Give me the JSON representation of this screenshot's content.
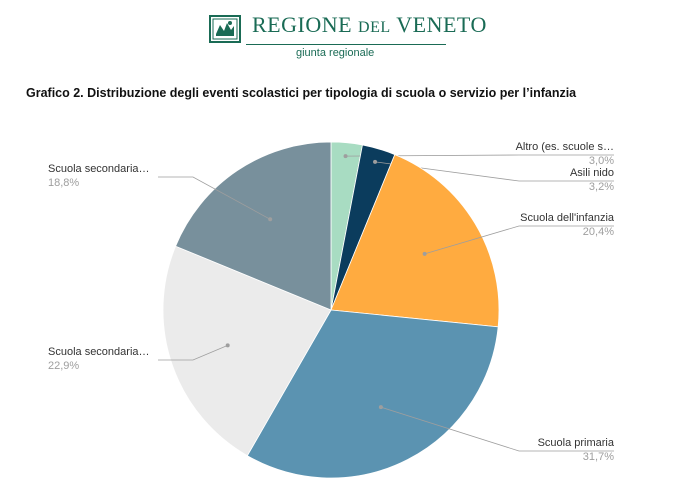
{
  "header": {
    "logo_main": "REGIONE",
    "logo_small": "DEL",
    "logo_end": "VENETO",
    "logo_sub": "giunta regionale",
    "brand_color": "#1a6b55"
  },
  "figure_title": "Grafico 2. Distribuzione degli eventi scolastici per tipologia di scuola o servizio per l’infanzia",
  "chart_data": {
    "type": "pie",
    "title": "",
    "slices": [
      {
        "label": "Altro (es. scuole s…",
        "value": 3.0,
        "display": "3,0%",
        "color": "#a8dcc2"
      },
      {
        "label": "Asili nido",
        "value": 3.2,
        "display": "3,2%",
        "color": "#0b3c5d"
      },
      {
        "label": "Scuola dell'infanzia",
        "value": 20.4,
        "display": "20,4%",
        "color": "#ffab40"
      },
      {
        "label": "Scuola primaria",
        "value": 31.7,
        "display": "31,7%",
        "color": "#5b93b1"
      },
      {
        "label": "Scuola secondaria…",
        "value": 22.9,
        "display": "22,9%",
        "color": "#ebebeb"
      },
      {
        "label": "Scuola secondaria…",
        "value": 18.8,
        "display": "18,8%",
        "color": "#78909c"
      }
    ]
  }
}
